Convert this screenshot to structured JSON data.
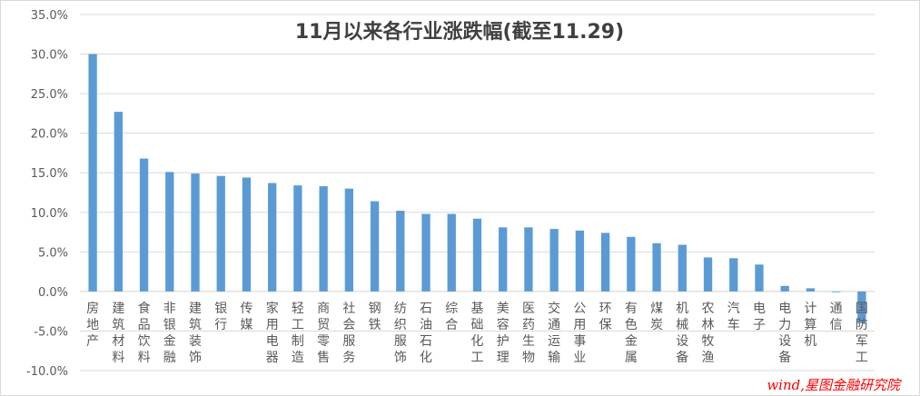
{
  "chart_data": {
    "type": "bar",
    "title": "11月以来各行业涨跌幅(截至11.29)",
    "xlabel": "",
    "ylabel": "",
    "ylim": [
      -0.1,
      0.35
    ],
    "yticks": [
      "35.0%",
      "30.0%",
      "25.0%",
      "20.0%",
      "15.0%",
      "10.0%",
      "5.0%",
      "0.0%",
      "-5.0%",
      "-10.0%"
    ],
    "categories": [
      "房地产",
      "建筑材料",
      "食品饮料",
      "非银金融",
      "建筑装饰",
      "银行",
      "传媒",
      "家用电器",
      "轻工制造",
      "商贸零售",
      "社会服务",
      "钢铁",
      "纺织服饰",
      "石油石化",
      "综合",
      "基础化工",
      "美容护理",
      "医药生物",
      "交通运输",
      "公用事业",
      "环保",
      "有色金属",
      "煤炭",
      "机械设备",
      "农林牧渔",
      "汽车",
      "电子",
      "电力设备",
      "计算机",
      "通信",
      "国防军工"
    ],
    "values": [
      0.3,
      0.227,
      0.168,
      0.151,
      0.149,
      0.146,
      0.144,
      0.137,
      0.134,
      0.133,
      0.13,
      0.114,
      0.102,
      0.098,
      0.098,
      0.092,
      0.081,
      0.081,
      0.079,
      0.077,
      0.074,
      0.069,
      0.061,
      0.059,
      0.043,
      0.042,
      0.034,
      0.007,
      0.004,
      0.0,
      -0.04
    ],
    "color": "#5b9bd5",
    "grid": true,
    "source": "wind,星图金融研究院"
  }
}
